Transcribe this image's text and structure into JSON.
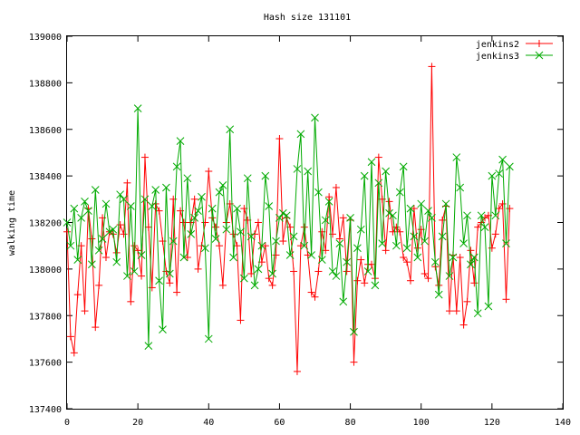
{
  "chart_data": {
    "type": "line",
    "title": "Hash size 131101",
    "xlabel": "",
    "ylabel": "walking time",
    "xlim": [
      0,
      140
    ],
    "ylim": [
      137400,
      139000
    ],
    "xticks": [
      0,
      20,
      40,
      60,
      80,
      100,
      120,
      140
    ],
    "yticks": [
      137400,
      137600,
      137800,
      138000,
      138200,
      138400,
      138600,
      138800,
      139000
    ],
    "legend_position": "top-right",
    "grid": false,
    "series": [
      {
        "name": "jenkins2",
        "color": "#ff0000",
        "marker": "plus",
        "x": [
          0,
          1,
          2,
          3,
          4,
          5,
          6,
          7,
          8,
          9,
          10,
          11,
          12,
          13,
          14,
          15,
          16,
          17,
          18,
          19,
          20,
          21,
          22,
          23,
          24,
          25,
          26,
          27,
          28,
          29,
          30,
          31,
          32,
          33,
          34,
          35,
          36,
          37,
          38,
          39,
          40,
          41,
          42,
          43,
          44,
          45,
          46,
          47,
          48,
          49,
          50,
          51,
          52,
          53,
          54,
          55,
          56,
          57,
          58,
          59,
          60,
          61,
          62,
          63,
          64,
          65,
          66,
          67,
          68,
          69,
          70,
          71,
          72,
          73,
          74,
          75,
          76,
          77,
          78,
          79,
          80,
          81,
          82,
          83,
          84,
          85,
          86,
          87,
          88,
          89,
          90,
          91,
          92,
          93,
          94,
          95,
          96,
          97,
          98,
          99,
          100,
          101,
          102,
          103,
          104,
          105,
          106,
          107,
          108,
          109,
          110,
          111,
          112,
          113,
          114,
          115,
          116,
          117,
          118,
          119,
          120,
          121,
          122,
          123,
          124,
          125
        ],
        "values": [
          138160,
          137710,
          137640,
          137890,
          138100,
          137820,
          138260,
          138130,
          137750,
          137930,
          138220,
          138050,
          138160,
          138150,
          138070,
          138190,
          138150,
          138370,
          137860,
          138100,
          138080,
          137970,
          138480,
          138180,
          137920,
          138280,
          138250,
          138120,
          137990,
          137940,
          138300,
          137900,
          138250,
          138200,
          138050,
          138200,
          138300,
          138000,
          138100,
          138200,
          138420,
          138220,
          138180,
          138100,
          137930,
          138200,
          138280,
          138150,
          138100,
          137780,
          138260,
          138210,
          137980,
          138150,
          138200,
          138030,
          138100,
          137960,
          137930,
          138060,
          138560,
          138120,
          138220,
          138180,
          137990,
          137560,
          138100,
          138180,
          138060,
          137900,
          137880,
          137990,
          138160,
          138080,
          138310,
          138150,
          138350,
          138130,
          138220,
          137990,
          138210,
          137600,
          137950,
          138040,
          137940,
          138020,
          138020,
          137960,
          138480,
          138300,
          138080,
          138290,
          138160,
          138180,
          138160,
          138050,
          138030,
          137950,
          138260,
          138090,
          138170,
          137980,
          137960,
          138870,
          138010,
          137930,
          138210,
          138270,
          137820,
          138060,
          137820,
          138050,
          137760,
          137860,
          138080,
          137940,
          138180,
          138200,
          138220,
          138230,
          138090,
          138150,
          138260,
          138280,
          137870,
          138260
        ]
      },
      {
        "name": "jenkins3",
        "color": "#00aa00",
        "marker": "cross",
        "x": [
          0,
          1,
          2,
          3,
          4,
          5,
          6,
          7,
          8,
          9,
          10,
          11,
          12,
          13,
          14,
          15,
          16,
          17,
          18,
          19,
          20,
          21,
          22,
          23,
          24,
          25,
          26,
          27,
          28,
          29,
          30,
          31,
          32,
          33,
          34,
          35,
          36,
          37,
          38,
          39,
          40,
          41,
          42,
          43,
          44,
          45,
          46,
          47,
          48,
          49,
          50,
          51,
          52,
          53,
          54,
          55,
          56,
          57,
          58,
          59,
          60,
          61,
          62,
          63,
          64,
          65,
          66,
          67,
          68,
          69,
          70,
          71,
          72,
          73,
          74,
          75,
          76,
          77,
          78,
          79,
          80,
          81,
          82,
          83,
          84,
          85,
          86,
          87,
          88,
          89,
          90,
          91,
          92,
          93,
          94,
          95,
          96,
          97,
          98,
          99,
          100,
          101,
          102,
          103,
          104,
          105,
          106,
          107,
          108,
          109,
          110,
          111,
          112,
          113,
          114,
          115,
          116,
          117,
          118,
          119,
          120,
          121,
          122,
          123,
          124,
          125
        ],
        "values": [
          138200,
          138100,
          138260,
          138040,
          138220,
          138290,
          138250,
          138020,
          138340,
          138080,
          138130,
          138280,
          138160,
          138170,
          138030,
          138320,
          138300,
          137970,
          138270,
          137990,
          138690,
          138060,
          138300,
          137670,
          138270,
          138340,
          137950,
          137740,
          138350,
          137980,
          138120,
          138440,
          138550,
          138050,
          138390,
          138150,
          138220,
          138250,
          138310,
          138090,
          137700,
          138260,
          138130,
          138330,
          138360,
          138170,
          138600,
          138050,
          138260,
          138160,
          137960,
          138390,
          138140,
          137930,
          138000,
          138100,
          138400,
          138270,
          137980,
          138120,
          138220,
          138240,
          138230,
          138060,
          138140,
          138430,
          138580,
          138100,
          138420,
          138060,
          138650,
          138330,
          138040,
          138210,
          138290,
          137990,
          137970,
          138110,
          137860,
          138030,
          138220,
          137730,
          138090,
          138170,
          138400,
          137990,
          138460,
          137930,
          138370,
          138110,
          138420,
          138240,
          138230,
          138100,
          138330,
          138440,
          138090,
          138260,
          138140,
          138050,
          138280,
          138120,
          138250,
          138220,
          138030,
          137890,
          138140,
          138280,
          137970,
          138050,
          138480,
          138350,
          138110,
          138230,
          138020,
          138050,
          137810,
          138230,
          138180,
          137840,
          138400,
          138230,
          138410,
          138470,
          138110,
          138440
        ]
      }
    ]
  }
}
